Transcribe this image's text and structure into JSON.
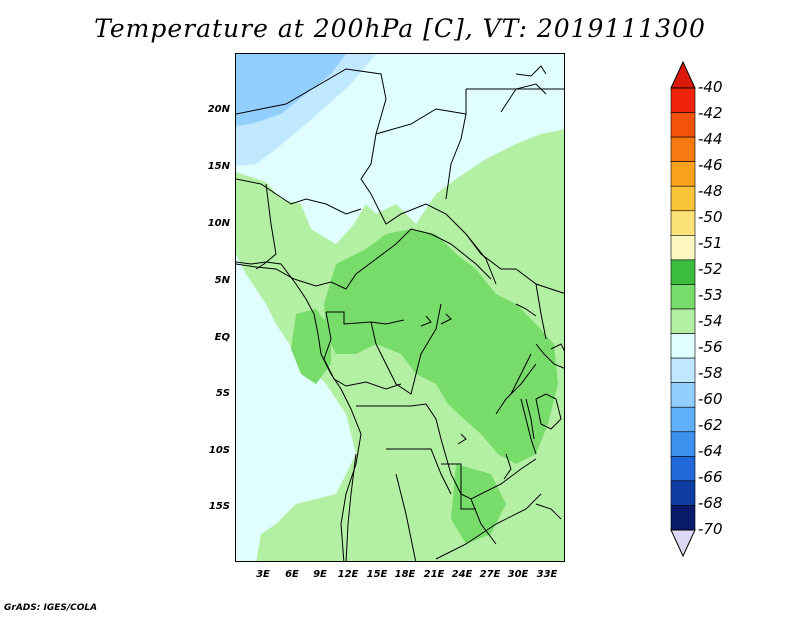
{
  "title": "Temperature at 200hPa [C], VT: 2019111300",
  "credit": "GrADS: IGES/COLA",
  "lat_labels": [
    "20N",
    "15N",
    "10N",
    "5N",
    "EQ",
    "5S",
    "10S",
    "15S"
  ],
  "lon_labels": [
    "3E",
    "6E",
    "9E",
    "12E",
    "15E",
    "18E",
    "21E",
    "24E",
    "27E",
    "30E",
    "33E"
  ],
  "colorbar": {
    "labels": [
      "-40",
      "-42",
      "-44",
      "-46",
      "-48",
      "-50",
      "-51",
      "-52",
      "-53",
      "-54",
      "-56",
      "-58",
      "-60",
      "-62",
      "-64",
      "-66",
      "-68",
      "-70"
    ],
    "colors": [
      "#f0220c",
      "#f2520c",
      "#f57a10",
      "#f7a21a",
      "#fac43a",
      "#fce078",
      "#fcf6c0",
      "#3cbc3c",
      "#78dc6a",
      "#b4f0a4",
      "#e0fefe",
      "#c0e8fe",
      "#92cefe",
      "#5fb0f8",
      "#3e90ee",
      "#2168d8",
      "#0e3ea4",
      "#0a1a6a"
    ],
    "top_arrow_color": "#dc1a0a",
    "bottom_arrow_color": "#ded8f4"
  },
  "field_colors": {
    "background": "#e0fefe",
    "level_53": "#b4f0a4",
    "level_52": "#78dc6a",
    "level_56": "#c0e8fe",
    "level_58": "#92cefe"
  }
}
